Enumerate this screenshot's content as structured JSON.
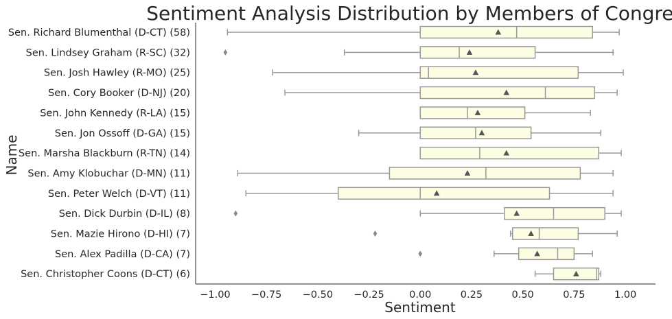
{
  "chart_data": {
    "type": "boxplot",
    "orientation": "horizontal",
    "title": "Sentiment Analysis Distribution by Members of Congress",
    "xlabel": "Sentiment",
    "ylabel": "Name",
    "xlim": [
      -1.05,
      1.05
    ],
    "xticks": [
      -1.0,
      -0.75,
      -0.5,
      -0.25,
      0.0,
      0.25,
      0.5,
      0.75,
      1.0
    ],
    "xtick_labels": [
      "−1.00",
      "−0.75",
      "−0.50",
      "−0.25",
      "0.00",
      "0.25",
      "0.50",
      "0.75",
      "1.00"
    ],
    "grid": false,
    "colors": {
      "box_fill": "#fdfde3",
      "box_edge": "#999999",
      "mean_marker": "#555555"
    },
    "categories": [
      "Sen. Richard Blumenthal (D-CT) (58)",
      "Sen. Lindsey Graham (R-SC) (32)",
      "Sen. Josh Hawley (R-MO) (25)",
      "Sen. Cory Booker (D-NJ) (20)",
      "Sen. John Kennedy (R-LA) (15)",
      "Sen. Jon Ossoff (D-GA) (15)",
      "Sen. Marsha Blackburn (R-TN) (14)",
      "Sen. Amy Klobuchar (D-MN) (11)",
      "Sen. Peter Welch (D-VT) (11)",
      "Sen. Dick Durbin (D-IL) (8)",
      "Sen. Mazie Hirono (D-HI) (7)",
      "Sen. Alex Padilla (D-CA) (7)",
      "Sen. Christopher Coons (D-CT) (6)"
    ],
    "boxes": [
      {
        "whisker_low": -0.94,
        "q1": 0.0,
        "median": 0.47,
        "q3": 0.84,
        "whisker_high": 0.97,
        "mean": 0.38,
        "outliers": []
      },
      {
        "whisker_low": -0.37,
        "q1": 0.0,
        "median": 0.19,
        "q3": 0.56,
        "whisker_high": 0.94,
        "mean": 0.24,
        "outliers": [
          -0.95
        ]
      },
      {
        "whisker_low": -0.72,
        "q1": 0.0,
        "median": 0.04,
        "q3": 0.77,
        "whisker_high": 0.99,
        "mean": 0.27,
        "outliers": []
      },
      {
        "whisker_low": -0.66,
        "q1": 0.0,
        "median": 0.61,
        "q3": 0.85,
        "whisker_high": 0.96,
        "mean": 0.42,
        "outliers": []
      },
      {
        "whisker_low": 0.0,
        "q1": 0.0,
        "median": 0.23,
        "q3": 0.51,
        "whisker_high": 0.83,
        "mean": 0.28,
        "outliers": []
      },
      {
        "whisker_low": -0.3,
        "q1": 0.0,
        "median": 0.27,
        "q3": 0.54,
        "whisker_high": 0.88,
        "mean": 0.3,
        "outliers": []
      },
      {
        "whisker_low": 0.0,
        "q1": 0.0,
        "median": 0.29,
        "q3": 0.87,
        "whisker_high": 0.98,
        "mean": 0.42,
        "outliers": []
      },
      {
        "whisker_low": -0.89,
        "q1": -0.15,
        "median": 0.32,
        "q3": 0.78,
        "whisker_high": 0.94,
        "mean": 0.23,
        "outliers": []
      },
      {
        "whisker_low": -0.85,
        "q1": -0.4,
        "median": 0.0,
        "q3": 0.63,
        "whisker_high": 0.94,
        "mean": 0.08,
        "outliers": []
      },
      {
        "whisker_low": 0.0,
        "q1": 0.41,
        "median": 0.65,
        "q3": 0.9,
        "whisker_high": 0.98,
        "mean": 0.47,
        "outliers": [
          -0.9
        ]
      },
      {
        "whisker_low": 0.44,
        "q1": 0.45,
        "median": 0.58,
        "q3": 0.77,
        "whisker_high": 0.96,
        "mean": 0.54,
        "outliers": [
          -0.22
        ]
      },
      {
        "whisker_low": 0.36,
        "q1": 0.48,
        "median": 0.67,
        "q3": 0.75,
        "whisker_high": 0.84,
        "mean": 0.57,
        "outliers": [
          0.0
        ]
      },
      {
        "whisker_low": 0.56,
        "q1": 0.65,
        "median": 0.86,
        "q3": 0.87,
        "whisker_high": 0.88,
        "mean": 0.76,
        "outliers": []
      }
    ]
  }
}
